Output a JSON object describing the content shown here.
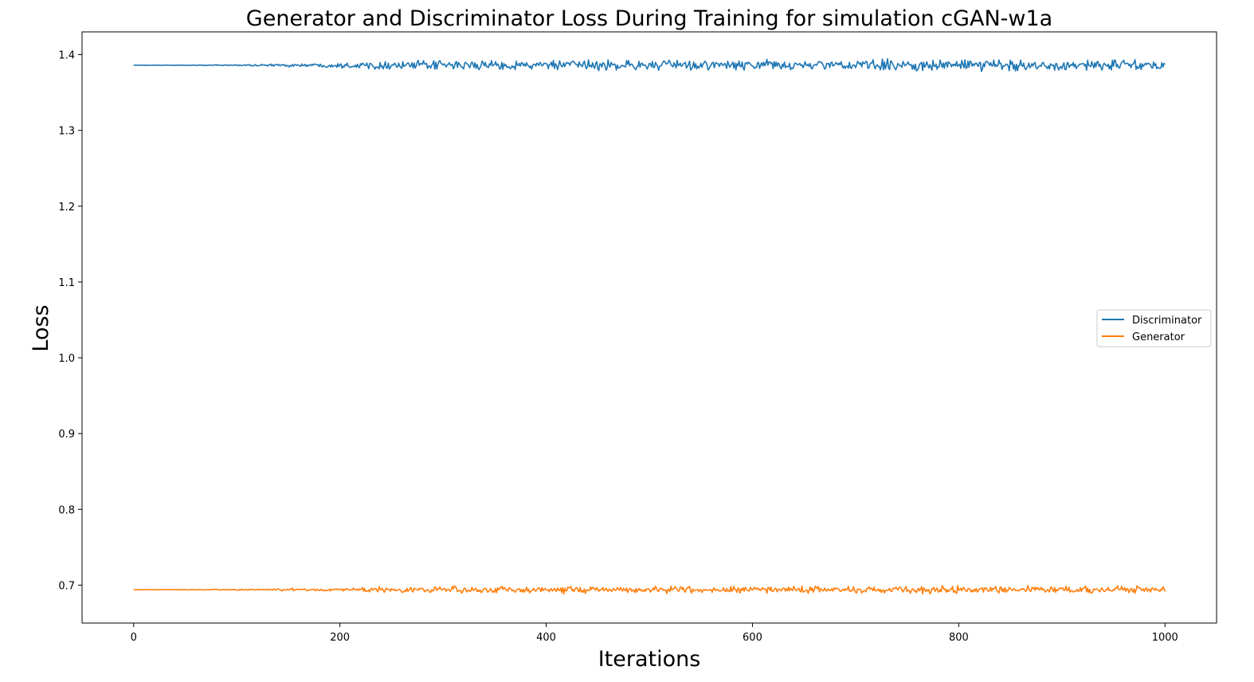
{
  "chart_data": {
    "type": "line",
    "title": "Generator and Discriminator Loss During Training for simulation cGAN-w1a",
    "xlabel": "Iterations",
    "ylabel": "Loss",
    "xlim": [
      -50,
      1050
    ],
    "ylim": [
      0.65,
      1.43
    ],
    "x_ticks": [
      0,
      200,
      400,
      600,
      800,
      1000
    ],
    "y_ticks": [
      0.7,
      0.8,
      0.9,
      1.0,
      1.1,
      1.2,
      1.3,
      1.4
    ],
    "grid": false,
    "legend": {
      "position": "center-right"
    },
    "x": {
      "start": 0,
      "end": 1000,
      "count": 1001
    },
    "series": [
      {
        "name": "Discriminator",
        "color": "#1f77b4",
        "baseline": 1.386,
        "noise": [
          {
            "from": 0,
            "amplitude": 0.0
          },
          {
            "from": 100,
            "amplitude": 0.001
          },
          {
            "from": 180,
            "amplitude": 0.003
          },
          {
            "from": 250,
            "amplitude": 0.006
          },
          {
            "from": 400,
            "amplitude": 0.007
          },
          {
            "from": 800,
            "amplitude": 0.008
          },
          {
            "from": 1000,
            "amplitude": 0.008
          }
        ],
        "range_observed": [
          1.371,
          1.395
        ]
      },
      {
        "name": "Generator",
        "color": "#ff7f0e",
        "baseline": 0.694,
        "noise": [
          {
            "from": 0,
            "amplitude": 0.0
          },
          {
            "from": 100,
            "amplitude": 0.001
          },
          {
            "from": 180,
            "amplitude": 0.002
          },
          {
            "from": 250,
            "amplitude": 0.004
          },
          {
            "from": 400,
            "amplitude": 0.005
          },
          {
            "from": 800,
            "amplitude": 0.005
          },
          {
            "from": 1000,
            "amplitude": 0.005
          }
        ],
        "range_observed": [
          0.685,
          0.709
        ]
      }
    ]
  }
}
